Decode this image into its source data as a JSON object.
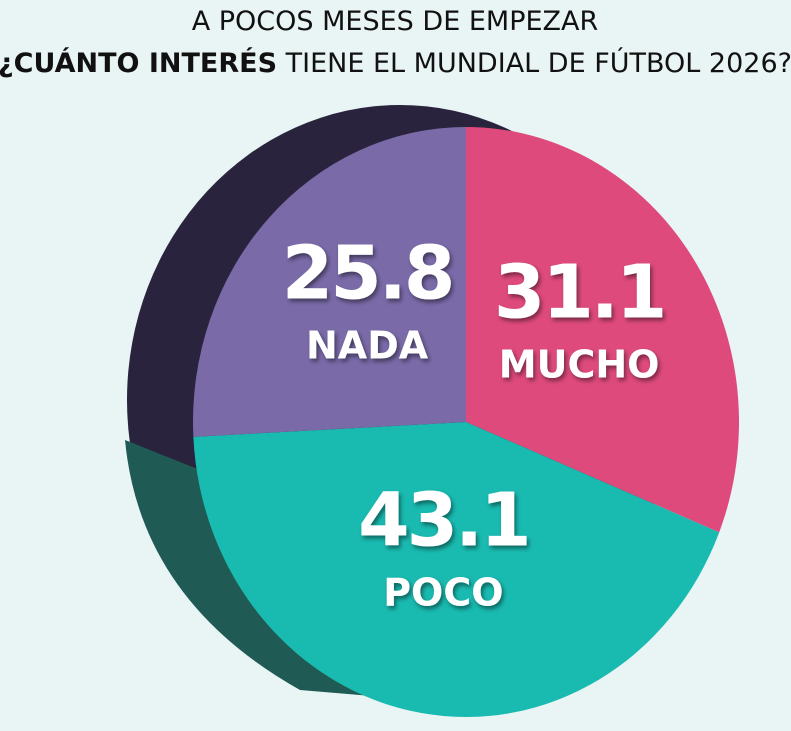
{
  "chart_data": {
    "type": "pie",
    "title": "A POCOS MESES DE EMPEZAR",
    "subtitle": [
      "¿CUÁNTO INTERÉS",
      "TIENE EL MUNDIAL DE FÚTBOL 2026?"
    ],
    "categories": [
      "MUCHO",
      "POCO",
      "NADA"
    ],
    "values": [
      31.1,
      43.1,
      25.8
    ],
    "colors": [
      "#de4a7c",
      "#19bab0",
      "#7a6aa8"
    ]
  }
}
